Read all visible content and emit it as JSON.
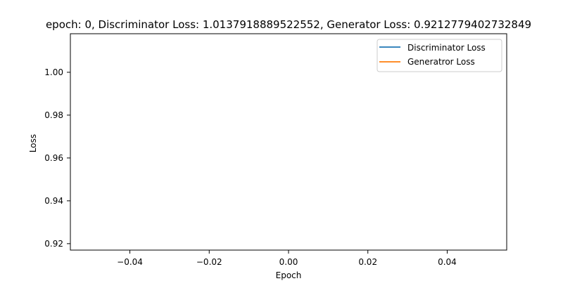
{
  "chart_data": {
    "type": "line",
    "title": "epoch: 0, Discriminator Loss: 1.0137918889522552, Generator Loss: 0.9212779402732849",
    "xlabel": "Epoch",
    "ylabel": "Loss",
    "xlim": [
      -0.055,
      0.055
    ],
    "ylim": [
      0.917,
      1.018
    ],
    "x_ticks": [
      {
        "value": -0.04,
        "label": "−0.04"
      },
      {
        "value": -0.02,
        "label": "−0.02"
      },
      {
        "value": 0.0,
        "label": "0.00"
      },
      {
        "value": 0.02,
        "label": "0.02"
      },
      {
        "value": 0.04,
        "label": "0.04"
      }
    ],
    "y_ticks": [
      {
        "value": 0.92,
        "label": "0.92"
      },
      {
        "value": 0.94,
        "label": "0.94"
      },
      {
        "value": 0.96,
        "label": "0.96"
      },
      {
        "value": 0.98,
        "label": "0.98"
      },
      {
        "value": 1.0,
        "label": "1.00"
      }
    ],
    "grid": false,
    "legend_position": "top-right",
    "series": [
      {
        "name": "Discriminator Loss",
        "color": "#1f77b4",
        "x": [
          0
        ],
        "values": [
          1.0137918889522552
        ]
      },
      {
        "name": "Generatror Loss",
        "color": "#ff7f0e",
        "x": [
          0
        ],
        "values": [
          0.9212779402732849
        ]
      }
    ]
  }
}
